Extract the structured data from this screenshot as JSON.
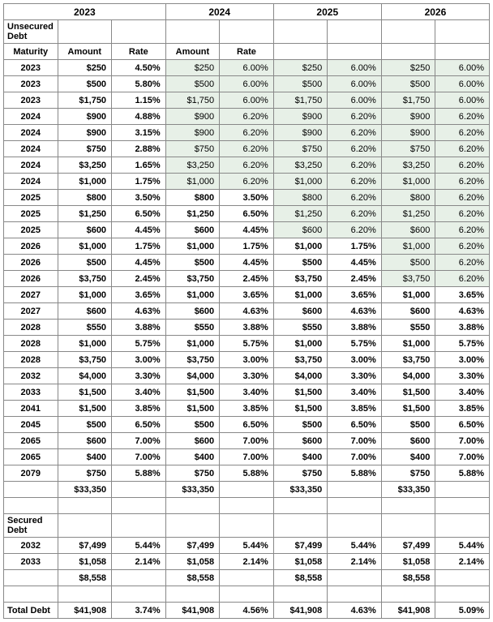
{
  "years": [
    "2023",
    "2024",
    "2025",
    "2026"
  ],
  "col_headers": {
    "maturity": "Maturity",
    "amount": "Amount",
    "rate": "Rate"
  },
  "sections": {
    "unsecured": {
      "title": "Unsecured Debt",
      "rows": [
        {
          "maturity": "2023",
          "amount": "$250",
          "cols": [
            {
              "r": "4.50%",
              "hl": false
            },
            {
              "r": "6.00%",
              "hl": true
            },
            {
              "r": "6.00%",
              "hl": true
            },
            {
              "r": "6.00%",
              "hl": true
            }
          ]
        },
        {
          "maturity": "2023",
          "amount": "$500",
          "cols": [
            {
              "r": "5.80%",
              "hl": false
            },
            {
              "r": "6.00%",
              "hl": true
            },
            {
              "r": "6.00%",
              "hl": true
            },
            {
              "r": "6.00%",
              "hl": true
            }
          ]
        },
        {
          "maturity": "2023",
          "amount": "$1,750",
          "cols": [
            {
              "r": "1.15%",
              "hl": false
            },
            {
              "r": "6.00%",
              "hl": true
            },
            {
              "r": "6.00%",
              "hl": true
            },
            {
              "r": "6.00%",
              "hl": true
            }
          ]
        },
        {
          "maturity": "2024",
          "amount": "$900",
          "cols": [
            {
              "r": "4.88%",
              "hl": false
            },
            {
              "r": "6.20%",
              "hl": true
            },
            {
              "r": "6.20%",
              "hl": true
            },
            {
              "r": "6.20%",
              "hl": true
            }
          ]
        },
        {
          "maturity": "2024",
          "amount": "$900",
          "cols": [
            {
              "r": "3.15%",
              "hl": false
            },
            {
              "r": "6.20%",
              "hl": true
            },
            {
              "r": "6.20%",
              "hl": true
            },
            {
              "r": "6.20%",
              "hl": true
            }
          ]
        },
        {
          "maturity": "2024",
          "amount": "$750",
          "cols": [
            {
              "r": "2.88%",
              "hl": false
            },
            {
              "r": "6.20%",
              "hl": true
            },
            {
              "r": "6.20%",
              "hl": true
            },
            {
              "r": "6.20%",
              "hl": true
            }
          ]
        },
        {
          "maturity": "2024",
          "amount": "$3,250",
          "cols": [
            {
              "r": "1.65%",
              "hl": false
            },
            {
              "r": "6.20%",
              "hl": true
            },
            {
              "r": "6.20%",
              "hl": true
            },
            {
              "r": "6.20%",
              "hl": true
            }
          ]
        },
        {
          "maturity": "2024",
          "amount": "$1,000",
          "cols": [
            {
              "r": "1.75%",
              "hl": false
            },
            {
              "r": "6.20%",
              "hl": true
            },
            {
              "r": "6.20%",
              "hl": true
            },
            {
              "r": "6.20%",
              "hl": true
            }
          ]
        },
        {
          "maturity": "2025",
          "amount": "$800",
          "cols": [
            {
              "r": "3.50%",
              "hl": false
            },
            {
              "r": "3.50%",
              "hl": false
            },
            {
              "r": "6.20%",
              "hl": true
            },
            {
              "r": "6.20%",
              "hl": true
            }
          ]
        },
        {
          "maturity": "2025",
          "amount": "$1,250",
          "cols": [
            {
              "r": "6.50%",
              "hl": false
            },
            {
              "r": "6.50%",
              "hl": false
            },
            {
              "r": "6.20%",
              "hl": true
            },
            {
              "r": "6.20%",
              "hl": true
            }
          ]
        },
        {
          "maturity": "2025",
          "amount": "$600",
          "cols": [
            {
              "r": "4.45%",
              "hl": false
            },
            {
              "r": "4.45%",
              "hl": false
            },
            {
              "r": "6.20%",
              "hl": true
            },
            {
              "r": "6.20%",
              "hl": true
            }
          ]
        },
        {
          "maturity": "2026",
          "amount": "$1,000",
          "cols": [
            {
              "r": "1.75%",
              "hl": false
            },
            {
              "r": "1.75%",
              "hl": false
            },
            {
              "r": "1.75%",
              "hl": false
            },
            {
              "r": "6.20%",
              "hl": true
            }
          ]
        },
        {
          "maturity": "2026",
          "amount": "$500",
          "cols": [
            {
              "r": "4.45%",
              "hl": false
            },
            {
              "r": "4.45%",
              "hl": false
            },
            {
              "r": "4.45%",
              "hl": false
            },
            {
              "r": "6.20%",
              "hl": true
            }
          ]
        },
        {
          "maturity": "2026",
          "amount": "$3,750",
          "cols": [
            {
              "r": "2.45%",
              "hl": false
            },
            {
              "r": "2.45%",
              "hl": false
            },
            {
              "r": "2.45%",
              "hl": false
            },
            {
              "r": "6.20%",
              "hl": true
            }
          ]
        },
        {
          "maturity": "2027",
          "amount": "$1,000",
          "cols": [
            {
              "r": "3.65%",
              "hl": false
            },
            {
              "r": "3.65%",
              "hl": false
            },
            {
              "r": "3.65%",
              "hl": false
            },
            {
              "r": "3.65%",
              "hl": false
            }
          ]
        },
        {
          "maturity": "2027",
          "amount": "$600",
          "cols": [
            {
              "r": "4.63%",
              "hl": false
            },
            {
              "r": "4.63%",
              "hl": false
            },
            {
              "r": "4.63%",
              "hl": false
            },
            {
              "r": "4.63%",
              "hl": false
            }
          ]
        },
        {
          "maturity": "2028",
          "amount": "$550",
          "cols": [
            {
              "r": "3.88%",
              "hl": false
            },
            {
              "r": "3.88%",
              "hl": false
            },
            {
              "r": "3.88%",
              "hl": false
            },
            {
              "r": "3.88%",
              "hl": false
            }
          ]
        },
        {
          "maturity": "2028",
          "amount": "$1,000",
          "cols": [
            {
              "r": "5.75%",
              "hl": false
            },
            {
              "r": "5.75%",
              "hl": false
            },
            {
              "r": "5.75%",
              "hl": false
            },
            {
              "r": "5.75%",
              "hl": false
            }
          ]
        },
        {
          "maturity": "2028",
          "amount": "$3,750",
          "cols": [
            {
              "r": "3.00%",
              "hl": false
            },
            {
              "r": "3.00%",
              "hl": false
            },
            {
              "r": "3.00%",
              "hl": false
            },
            {
              "r": "3.00%",
              "hl": false
            }
          ]
        },
        {
          "maturity": "2032",
          "amount": "$4,000",
          "cols": [
            {
              "r": "3.30%",
              "hl": false
            },
            {
              "r": "3.30%",
              "hl": false
            },
            {
              "r": "3.30%",
              "hl": false
            },
            {
              "r": "3.30%",
              "hl": false
            }
          ]
        },
        {
          "maturity": "2033",
          "amount": "$1,500",
          "cols": [
            {
              "r": "3.40%",
              "hl": false
            },
            {
              "r": "3.40%",
              "hl": false
            },
            {
              "r": "3.40%",
              "hl": false
            },
            {
              "r": "3.40%",
              "hl": false
            }
          ]
        },
        {
          "maturity": "2041",
          "amount": "$1,500",
          "cols": [
            {
              "r": "3.85%",
              "hl": false
            },
            {
              "r": "3.85%",
              "hl": false
            },
            {
              "r": "3.85%",
              "hl": false
            },
            {
              "r": "3.85%",
              "hl": false
            }
          ]
        },
        {
          "maturity": "2045",
          "amount": "$500",
          "cols": [
            {
              "r": "6.50%",
              "hl": false
            },
            {
              "r": "6.50%",
              "hl": false
            },
            {
              "r": "6.50%",
              "hl": false
            },
            {
              "r": "6.50%",
              "hl": false
            }
          ]
        },
        {
          "maturity": "2065",
          "amount": "$600",
          "cols": [
            {
              "r": "7.00%",
              "hl": false
            },
            {
              "r": "7.00%",
              "hl": false
            },
            {
              "r": "7.00%",
              "hl": false
            },
            {
              "r": "7.00%",
              "hl": false
            }
          ]
        },
        {
          "maturity": "2065",
          "amount": "$400",
          "cols": [
            {
              "r": "7.00%",
              "hl": false
            },
            {
              "r": "7.00%",
              "hl": false
            },
            {
              "r": "7.00%",
              "hl": false
            },
            {
              "r": "7.00%",
              "hl": false
            }
          ]
        },
        {
          "maturity": "2079",
          "amount": "$750",
          "cols": [
            {
              "r": "5.88%",
              "hl": false
            },
            {
              "r": "5.88%",
              "hl": false
            },
            {
              "r": "5.88%",
              "hl": false
            },
            {
              "r": "5.88%",
              "hl": false
            }
          ]
        }
      ],
      "subtotal": "$33,350"
    },
    "secured": {
      "title": "Secured Debt",
      "rows": [
        {
          "maturity": "2032",
          "amount": "$7,499",
          "cols": [
            {
              "r": "5.44%",
              "hl": false
            },
            {
              "r": "5.44%",
              "hl": false
            },
            {
              "r": "5.44%",
              "hl": false
            },
            {
              "r": "5.44%",
              "hl": false
            }
          ]
        },
        {
          "maturity": "2033",
          "amount": "$1,058",
          "cols": [
            {
              "r": "2.14%",
              "hl": false
            },
            {
              "r": "2.14%",
              "hl": false
            },
            {
              "r": "2.14%",
              "hl": false
            },
            {
              "r": "2.14%",
              "hl": false
            }
          ]
        }
      ],
      "subtotal": "$8,558"
    }
  },
  "grand_total": {
    "label": "Total Debt",
    "amount": "$41,908",
    "rates": [
      "3.74%",
      "4.56%",
      "4.63%",
      "5.09%"
    ]
  },
  "colors": {
    "highlight_bg": "#e7f0e7",
    "border": "#888888"
  }
}
